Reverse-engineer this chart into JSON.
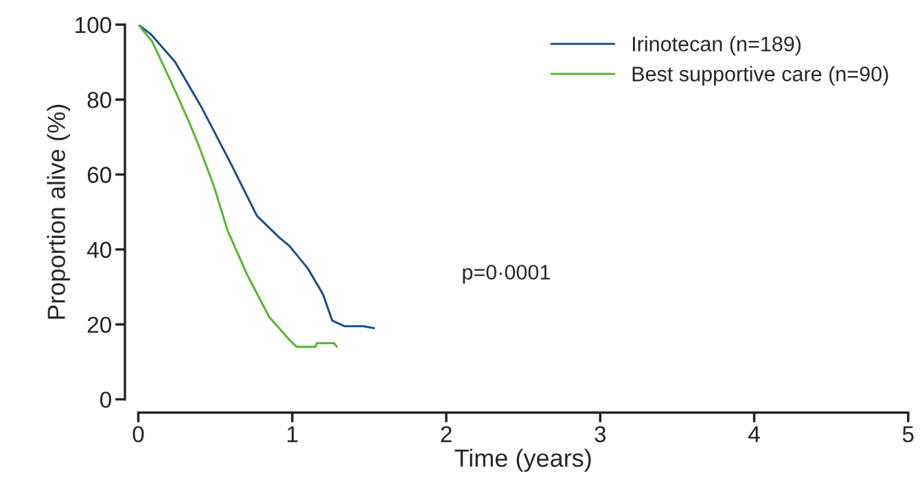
{
  "chart_data": {
    "type": "line",
    "xlabel": "Time (years)",
    "ylabel": "Proportion alive (%)",
    "xlim": [
      0,
      5
    ],
    "xticks": [
      0,
      1,
      2,
      3,
      4,
      5
    ],
    "ylim": [
      0,
      100
    ],
    "yticks": [
      0,
      20,
      40,
      60,
      80,
      100
    ],
    "grid": false,
    "legend": "top right",
    "marker": "none",
    "line_style": "solid",
    "annotations": [
      "p=0·0001"
    ],
    "series": [
      {
        "name": "Irinotecan (n=189)",
        "color": "#1a4f8c",
        "x": [
          0,
          0.08,
          0.24,
          0.41,
          0.6,
          0.77,
          0.92,
          0.98,
          1.1,
          1.2,
          1.26,
          1.34,
          1.46,
          1.53
        ],
        "values": [
          100,
          97.5,
          90,
          78,
          63,
          49,
          43,
          41,
          35,
          28,
          21,
          19.5,
          19.5,
          19
        ]
      },
      {
        "name": "Best supportive care (n=90)",
        "color": "#55b82e",
        "x": [
          0,
          0.09,
          0.21,
          0.33,
          0.39,
          0.49,
          0.58,
          0.71,
          0.85,
          0.99,
          1.03,
          1.15,
          1.16,
          1.27,
          1.29
        ],
        "values": [
          100,
          95.5,
          85,
          74,
          68,
          57,
          45,
          33,
          22,
          15.5,
          14,
          14,
          15,
          15,
          14
        ]
      }
    ]
  }
}
